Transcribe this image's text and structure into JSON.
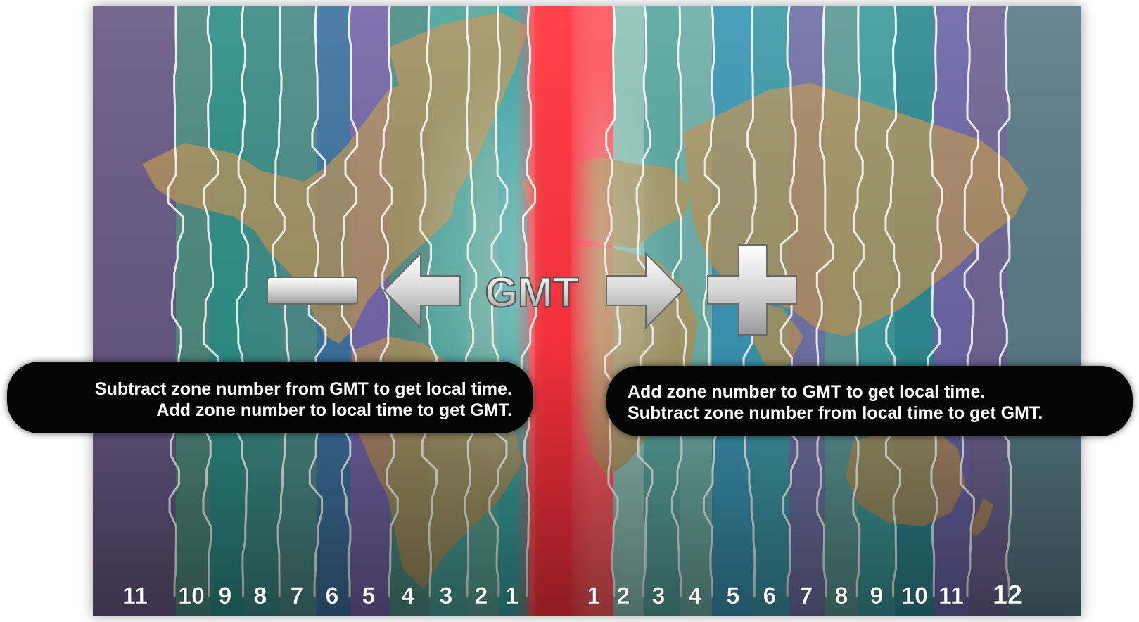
{
  "map": {
    "center_label": "GMT",
    "minus_symbol": "minus-sign",
    "plus_symbol": "plus-sign",
    "left_arrow_icon": "arrow-left-icon",
    "right_arrow_icon": "arrow-right-icon",
    "gmt_band_color": "#ff2a35",
    "land_color": "#b99459",
    "boundary_color": "#ffffff"
  },
  "bubbles": {
    "west": {
      "line1": "Subtract zone number from GMT to get local time.",
      "line2": "Add zone number to local time to get GMT."
    },
    "east": {
      "line1": "Add zone number to GMT to get local time.",
      "line2": "Subtract zone number from local time to get GMT."
    }
  },
  "zones": {
    "west": [
      "11",
      "10",
      "9",
      "8",
      "7",
      "6",
      "5",
      "4",
      "3",
      "2",
      "1"
    ],
    "east": [
      "1",
      "2",
      "3",
      "4",
      "5",
      "6",
      "7",
      "8",
      "9",
      "10",
      "11",
      "12"
    ]
  }
}
